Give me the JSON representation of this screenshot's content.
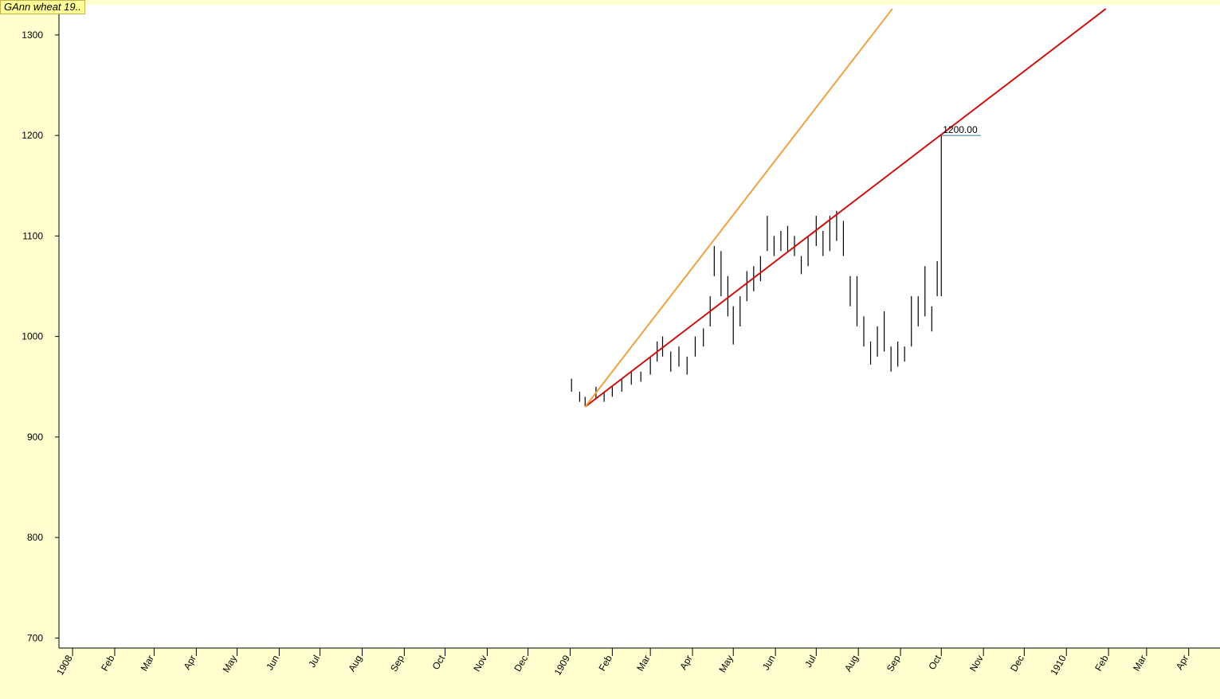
{
  "chart_data": {
    "type": "ohlc",
    "title": "GAnn wheat 19..",
    "x": [
      "1909-01-02",
      "1909-01-08",
      "1909-01-12",
      "1909-01-20",
      "1909-01-26",
      "1909-02-01",
      "1909-02-08",
      "1909-02-15",
      "1909-02-22",
      "1909-03-01",
      "1909-03-06",
      "1909-03-10",
      "1909-03-16",
      "1909-03-22",
      "1909-03-28",
      "1909-04-03",
      "1909-04-09",
      "1909-04-14",
      "1909-04-17",
      "1909-04-22",
      "1909-04-27",
      "1909-05-01",
      "1909-05-06",
      "1909-05-11",
      "1909-05-16",
      "1909-05-21",
      "1909-05-26",
      "1909-05-31",
      "1909-06-05",
      "1909-06-10",
      "1909-06-15",
      "1909-06-20",
      "1909-06-25",
      "1909-07-01",
      "1909-07-06",
      "1909-07-11",
      "1909-07-16",
      "1909-07-21",
      "1909-07-26",
      "1909-07-31",
      "1909-08-05",
      "1909-08-10",
      "1909-08-15",
      "1909-08-20",
      "1909-08-25",
      "1909-08-30",
      "1909-09-04",
      "1909-09-09",
      "1909-09-14",
      "1909-09-19",
      "1909-09-24",
      "1909-09-28",
      "1909-10-01"
    ],
    "high": [
      958,
      945,
      940,
      950,
      945,
      950,
      958,
      965,
      965,
      980,
      995,
      1000,
      985,
      990,
      980,
      1000,
      1008,
      1040,
      1090,
      1085,
      1060,
      1030,
      1040,
      1065,
      1070,
      1080,
      1120,
      1100,
      1105,
      1110,
      1100,
      1080,
      1100,
      1120,
      1105,
      1120,
      1125,
      1115,
      1060,
      1060,
      1020,
      995,
      1010,
      1025,
      990,
      995,
      990,
      1040,
      1040,
      1070,
      1030,
      1075,
      1200
    ],
    "low": [
      945,
      935,
      930,
      938,
      935,
      940,
      945,
      952,
      955,
      962,
      975,
      980,
      965,
      970,
      962,
      980,
      990,
      1010,
      1060,
      1040,
      1020,
      992,
      1010,
      1035,
      1045,
      1055,
      1085,
      1080,
      1085,
      1085,
      1080,
      1062,
      1070,
      1090,
      1080,
      1085,
      1095,
      1080,
      1030,
      1010,
      990,
      972,
      980,
      985,
      965,
      970,
      975,
      990,
      1010,
      1020,
      1005,
      1040,
      1040
    ],
    "color": "#000000",
    "lines": [
      {
        "color": "#cc1111",
        "x": [
          "1909-01-12",
          "1910-01-30"
        ],
        "y": [
          930,
          1326
        ]
      },
      {
        "color": "#f0a040",
        "x": [
          "1909-01-12",
          "1909-08-26"
        ],
        "y": [
          930,
          1326
        ]
      }
    ],
    "level": {
      "x": [
        "1909-10-01",
        "1909-10-30"
      ],
      "value": 1200,
      "label": "1200.00",
      "color": "#2a7fa0"
    },
    "xlim": [
      "1907-12-22",
      "1910-04-24"
    ],
    "ylim": [
      690,
      1330
    ],
    "yticks": [
      700,
      800,
      900,
      1000,
      1100,
      1200,
      1300
    ],
    "xticks": [
      {
        "value": "1908-01-01",
        "label": "1908"
      },
      {
        "value": "1908-02-01",
        "label": "Feb"
      },
      {
        "value": "1908-03-01",
        "label": "Mar"
      },
      {
        "value": "1908-04-01",
        "label": "Apr"
      },
      {
        "value": "1908-05-01",
        "label": "May"
      },
      {
        "value": "1908-06-01",
        "label": "Jun"
      },
      {
        "value": "1908-07-01",
        "label": "Jul"
      },
      {
        "value": "1908-08-01",
        "label": "Aug"
      },
      {
        "value": "1908-09-01",
        "label": "Sep"
      },
      {
        "value": "1908-10-01",
        "label": "Oct"
      },
      {
        "value": "1908-11-01",
        "label": "Nov"
      },
      {
        "value": "1908-12-01",
        "label": "Dec"
      },
      {
        "value": "1909-01-01",
        "label": "1909"
      },
      {
        "value": "1909-02-01",
        "label": "Feb"
      },
      {
        "value": "1909-03-01",
        "label": "Mar"
      },
      {
        "value": "1909-04-01",
        "label": "Apr"
      },
      {
        "value": "1909-05-01",
        "label": "May"
      },
      {
        "value": "1909-06-01",
        "label": "Jun"
      },
      {
        "value": "1909-07-01",
        "label": "Jul"
      },
      {
        "value": "1909-08-01",
        "label": "Aug"
      },
      {
        "value": "1909-09-01",
        "label": "Sep"
      },
      {
        "value": "1909-10-01",
        "label": "Oct"
      },
      {
        "value": "1909-11-01",
        "label": "Nov"
      },
      {
        "value": "1909-12-01",
        "label": "Dec"
      },
      {
        "value": "1910-01-01",
        "label": "1910"
      },
      {
        "value": "1910-02-01",
        "label": "Feb"
      },
      {
        "value": "1910-03-01",
        "label": "Mar"
      },
      {
        "value": "1910-04-01",
        "label": "Apr"
      }
    ]
  }
}
